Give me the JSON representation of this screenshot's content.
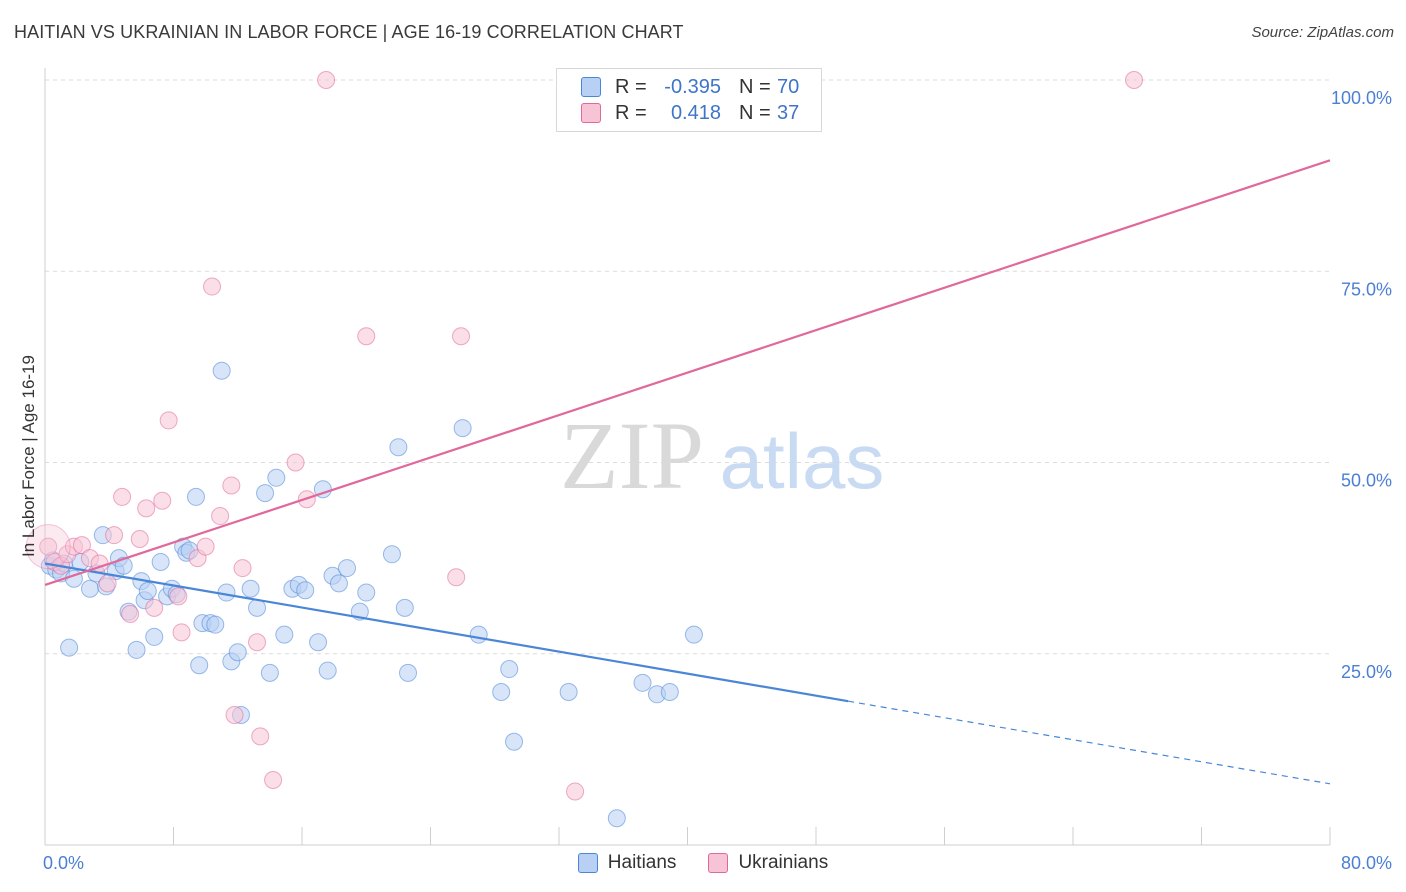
{
  "title": "HAITIAN VS UKRAINIAN IN LABOR FORCE | AGE 16-19 CORRELATION CHART",
  "source": "Source: ZipAtlas.com",
  "watermark": {
    "zip": "ZIP",
    "atlas": "atlas"
  },
  "colors": {
    "haitians": "#4a86d8",
    "haitians_fill": "#b8d0f4",
    "ukrainians": "#e0689a",
    "ukrainians_fill": "#f7c4d6",
    "tick_text": "#4a7fd4",
    "grid": "#dcdcdc"
  },
  "legend": {
    "rows": [
      {
        "series": "Haitians",
        "r_label": "R =",
        "r_value": "-0.395",
        "n_label": "N =",
        "n_value": "70"
      },
      {
        "series": "Ukrainians",
        "r_label": "R =",
        "r_value": "0.418",
        "n_label": "N =",
        "n_value": "37"
      }
    ]
  },
  "chart_data": {
    "type": "scatter",
    "title": "HAITIAN VS UKRAINIAN IN LABOR FORCE | AGE 16-19 CORRELATION CHART",
    "xlabel": "",
    "ylabel": "In Labor Force | Age 16-19",
    "xlim": [
      0,
      80
    ],
    "ylim": [
      0,
      100
    ],
    "x_tick_labels": [
      "0.0%",
      "80.0%"
    ],
    "y_ticks": [
      25,
      50,
      75,
      100
    ],
    "y_tick_labels": [
      "25.0%",
      "50.0%",
      "75.0%",
      "100.0%"
    ],
    "grid": true,
    "legend_position": "top-center",
    "series": [
      {
        "name": "Haitians",
        "color": "#4a86d8",
        "r": -0.395,
        "n": 70,
        "trend": {
          "x": [
            0,
            50,
            80
          ],
          "y": [
            36.8,
            19.0,
            8.0
          ],
          "solid_until_x": 50
        },
        "points": [
          {
            "x": 0.3,
            "y": 36.5
          },
          {
            "x": 0.5,
            "y": 37.2
          },
          {
            "x": 0.7,
            "y": 36.0
          },
          {
            "x": 1.0,
            "y": 35.5
          },
          {
            "x": 1.2,
            "y": 36.8
          },
          {
            "x": 1.5,
            "y": 25.8
          },
          {
            "x": 1.8,
            "y": 34.8
          },
          {
            "x": 2.2,
            "y": 37.0
          },
          {
            "x": 2.8,
            "y": 33.5
          },
          {
            "x": 3.2,
            "y": 35.5
          },
          {
            "x": 3.6,
            "y": 40.5
          },
          {
            "x": 3.8,
            "y": 33.8
          },
          {
            "x": 4.4,
            "y": 35.8
          },
          {
            "x": 4.6,
            "y": 37.5
          },
          {
            "x": 4.9,
            "y": 36.5
          },
          {
            "x": 5.2,
            "y": 30.5
          },
          {
            "x": 5.7,
            "y": 25.5
          },
          {
            "x": 6.0,
            "y": 34.5
          },
          {
            "x": 6.2,
            "y": 32.0
          },
          {
            "x": 6.4,
            "y": 33.2
          },
          {
            "x": 6.8,
            "y": 27.2
          },
          {
            "x": 7.2,
            "y": 37.0
          },
          {
            "x": 7.6,
            "y": 32.5
          },
          {
            "x": 7.9,
            "y": 33.5
          },
          {
            "x": 8.2,
            "y": 32.8
          },
          {
            "x": 8.6,
            "y": 39.0
          },
          {
            "x": 8.8,
            "y": 38.2
          },
          {
            "x": 9.4,
            "y": 45.5
          },
          {
            "x": 9.6,
            "y": 23.5
          },
          {
            "x": 9.8,
            "y": 29.0
          },
          {
            "x": 10.3,
            "y": 29.0
          },
          {
            "x": 10.6,
            "y": 28.8
          },
          {
            "x": 11.0,
            "y": 62.0
          },
          {
            "x": 11.3,
            "y": 33.0
          },
          {
            "x": 11.6,
            "y": 24.0
          },
          {
            "x": 12.0,
            "y": 25.2
          },
          {
            "x": 12.2,
            "y": 17.0
          },
          {
            "x": 12.8,
            "y": 33.5
          },
          {
            "x": 13.2,
            "y": 31.0
          },
          {
            "x": 13.7,
            "y": 46.0
          },
          {
            "x": 14.0,
            "y": 22.5
          },
          {
            "x": 14.4,
            "y": 48.0
          },
          {
            "x": 14.9,
            "y": 27.5
          },
          {
            "x": 15.4,
            "y": 33.5
          },
          {
            "x": 15.8,
            "y": 34.0
          },
          {
            "x": 16.2,
            "y": 33.3
          },
          {
            "x": 17.0,
            "y": 26.5
          },
          {
            "x": 17.3,
            "y": 46.5
          },
          {
            "x": 17.6,
            "y": 22.8
          },
          {
            "x": 17.9,
            "y": 35.2
          },
          {
            "x": 18.3,
            "y": 34.2
          },
          {
            "x": 18.8,
            "y": 36.2
          },
          {
            "x": 19.6,
            "y": 30.5
          },
          {
            "x": 20.0,
            "y": 33.0
          },
          {
            "x": 21.6,
            "y": 38.0
          },
          {
            "x": 22.0,
            "y": 52.0
          },
          {
            "x": 22.4,
            "y": 31.0
          },
          {
            "x": 22.6,
            "y": 22.5
          },
          {
            "x": 26.0,
            "y": 54.5
          },
          {
            "x": 27.0,
            "y": 27.5
          },
          {
            "x": 28.4,
            "y": 20.0
          },
          {
            "x": 28.9,
            "y": 23.0
          },
          {
            "x": 29.2,
            "y": 13.5
          },
          {
            "x": 32.6,
            "y": 20.0
          },
          {
            "x": 35.6,
            "y": 3.5
          },
          {
            "x": 37.2,
            "y": 21.2
          },
          {
            "x": 38.1,
            "y": 19.7
          },
          {
            "x": 38.9,
            "y": 20.0
          },
          {
            "x": 40.4,
            "y": 27.5
          },
          {
            "x": 9.0,
            "y": 38.5
          }
        ]
      },
      {
        "name": "Ukrainians",
        "color": "#e0689a",
        "r": 0.418,
        "n": 37,
        "trend": {
          "x": [
            0,
            80
          ],
          "y": [
            34.0,
            89.5
          ],
          "solid_until_x": 80
        },
        "points": [
          {
            "x": 0.2,
            "y": 39.0
          },
          {
            "x": 0.6,
            "y": 37.0
          },
          {
            "x": 1.0,
            "y": 36.5
          },
          {
            "x": 1.4,
            "y": 38.0
          },
          {
            "x": 1.8,
            "y": 39.0
          },
          {
            "x": 2.3,
            "y": 39.2
          },
          {
            "x": 2.8,
            "y": 37.5
          },
          {
            "x": 3.4,
            "y": 36.8
          },
          {
            "x": 3.9,
            "y": 34.2
          },
          {
            "x": 4.3,
            "y": 40.5
          },
          {
            "x": 4.8,
            "y": 45.5
          },
          {
            "x": 5.3,
            "y": 30.2
          },
          {
            "x": 5.9,
            "y": 40.0
          },
          {
            "x": 6.3,
            "y": 44.0
          },
          {
            "x": 6.8,
            "y": 31.0
          },
          {
            "x": 7.3,
            "y": 45.0
          },
          {
            "x": 7.7,
            "y": 55.5
          },
          {
            "x": 8.5,
            "y": 27.8
          },
          {
            "x": 8.3,
            "y": 32.5
          },
          {
            "x": 9.5,
            "y": 37.5
          },
          {
            "x": 10.0,
            "y": 39.0
          },
          {
            "x": 10.4,
            "y": 73.0
          },
          {
            "x": 10.9,
            "y": 43.0
          },
          {
            "x": 11.6,
            "y": 47.0
          },
          {
            "x": 11.8,
            "y": 17.0
          },
          {
            "x": 12.3,
            "y": 36.2
          },
          {
            "x": 13.2,
            "y": 26.5
          },
          {
            "x": 13.4,
            "y": 14.2
          },
          {
            "x": 14.2,
            "y": 8.5
          },
          {
            "x": 15.6,
            "y": 50.0
          },
          {
            "x": 16.3,
            "y": 45.2
          },
          {
            "x": 17.5,
            "y": 100.0
          },
          {
            "x": 20.0,
            "y": 66.5
          },
          {
            "x": 25.6,
            "y": 35.0
          },
          {
            "x": 25.9,
            "y": 66.5
          },
          {
            "x": 33.0,
            "y": 7.0
          },
          {
            "x": 67.8,
            "y": 100.0
          }
        ]
      }
    ]
  }
}
